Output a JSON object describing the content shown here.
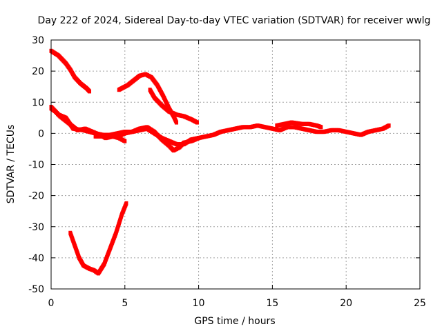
{
  "chart_data": {
    "type": "scatter",
    "title": "Day 222 of 2024, Sidereal Day-to-day VTEC variation (SDTVAR) for receiver wwlg",
    "xlabel": "GPS time / hours",
    "ylabel": "SDTVAR / TECUs",
    "xlim": [
      0,
      25
    ],
    "ylim": [
      -50,
      30
    ],
    "x_ticks": [
      0,
      5,
      10,
      15,
      20,
      25
    ],
    "y_ticks": [
      -50,
      -40,
      -30,
      -20,
      -10,
      0,
      10,
      20,
      30
    ],
    "x_tick_labels": [
      "0",
      "5",
      "10",
      "15",
      "20",
      "25"
    ],
    "y_tick_labels": [
      "-50",
      "-40",
      "-30",
      "-20",
      "-10",
      "0",
      "10",
      "20",
      "30"
    ],
    "grid": true,
    "legend": "none",
    "marker_color": "#ff0000",
    "series": [
      {
        "name": "arc-1",
        "points": [
          [
            0,
            26.5
          ],
          [
            0.5,
            25
          ],
          [
            1,
            22.5
          ],
          [
            1.3,
            20.5
          ],
          [
            1.6,
            18
          ],
          [
            2,
            16
          ],
          [
            2.4,
            14.5
          ],
          [
            2.6,
            13.5
          ]
        ]
      },
      {
        "name": "arc-2",
        "points": [
          [
            4.6,
            14
          ],
          [
            5.2,
            15.5
          ],
          [
            5.6,
            17
          ],
          [
            6,
            18.5
          ],
          [
            6.4,
            19
          ],
          [
            6.8,
            18
          ],
          [
            7.2,
            15.5
          ],
          [
            7.6,
            12
          ],
          [
            8,
            8
          ],
          [
            8.3,
            5.5
          ],
          [
            8.5,
            3.5
          ]
        ]
      },
      {
        "name": "arc-3",
        "points": [
          [
            6.7,
            14
          ],
          [
            7,
            11.5
          ],
          [
            7.5,
            9
          ],
          [
            8,
            7
          ],
          [
            8.5,
            6
          ],
          [
            9,
            5.5
          ],
          [
            9.5,
            4.5
          ],
          [
            9.9,
            3.5
          ]
        ]
      },
      {
        "name": "arc-4",
        "points": [
          [
            0,
            8
          ],
          [
            0.3,
            7
          ],
          [
            0.6,
            5.5
          ],
          [
            1,
            4
          ],
          [
            1.4,
            2.5
          ],
          [
            1.8,
            1
          ],
          [
            2.3,
            1.5
          ],
          [
            2.8,
            0.5
          ],
          [
            3.3,
            -0.5
          ],
          [
            3.7,
            -1.5
          ],
          [
            4.2,
            -1
          ],
          [
            4.6,
            -1.5
          ],
          [
            5,
            -2.5
          ]
        ]
      },
      {
        "name": "arc-5",
        "points": [
          [
            0,
            8.5
          ],
          [
            0.5,
            6
          ],
          [
            1,
            5
          ],
          [
            1.5,
            1.5
          ],
          [
            2.2,
            1
          ],
          [
            3,
            0
          ],
          [
            3.5,
            -0.5
          ],
          [
            4,
            -0.5
          ],
          [
            4.5,
            0
          ],
          [
            5,
            0.5
          ],
          [
            5.5,
            0.5
          ],
          [
            6,
            1
          ],
          [
            6.5,
            1.5
          ],
          [
            7,
            0
          ],
          [
            7.5,
            -1.5
          ],
          [
            8,
            -2.5
          ],
          [
            8.5,
            -3.5
          ],
          [
            9,
            -3.5
          ],
          [
            9.5,
            -2
          ],
          [
            10,
            -1.5
          ],
          [
            10.5,
            -1
          ],
          [
            11,
            -0.5
          ],
          [
            11.5,
            0.5
          ],
          [
            12,
            1
          ],
          [
            12.5,
            1.5
          ],
          [
            13,
            2
          ],
          [
            13.5,
            2
          ],
          [
            14,
            2.5
          ],
          [
            14.5,
            2
          ],
          [
            15,
            1.5
          ],
          [
            15.5,
            1
          ],
          [
            16,
            2
          ],
          [
            16.5,
            2
          ],
          [
            17,
            1.5
          ],
          [
            17.5,
            1
          ],
          [
            18,
            0.5
          ],
          [
            18.5,
            0.5
          ],
          [
            19,
            1
          ],
          [
            19.5,
            1
          ],
          [
            20,
            0.5
          ],
          [
            20.5,
            0
          ],
          [
            21,
            -0.5
          ],
          [
            21.5,
            0.5
          ],
          [
            22,
            1
          ],
          [
            22.5,
            1.5
          ],
          [
            22.9,
            2.5
          ]
        ]
      },
      {
        "name": "arc-6",
        "points": [
          [
            3,
            -1
          ],
          [
            4,
            -1
          ],
          [
            4.5,
            -1
          ],
          [
            5,
            0
          ],
          [
            5.5,
            0.5
          ],
          [
            6,
            1.5
          ],
          [
            6.5,
            2
          ],
          [
            7,
            0.5
          ],
          [
            7.5,
            -2
          ],
          [
            8,
            -4
          ],
          [
            8.3,
            -5.5
          ],
          [
            8.7,
            -4.5
          ],
          [
            9,
            -3
          ],
          [
            9.5,
            -2.5
          ],
          [
            10,
            -1.5
          ]
        ]
      },
      {
        "name": "arc-7",
        "points": [
          [
            15.3,
            2.5
          ],
          [
            15.8,
            3
          ],
          [
            16.3,
            3.5
          ],
          [
            17,
            3
          ],
          [
            17.5,
            3
          ],
          [
            18,
            2.5
          ],
          [
            18.3,
            2
          ]
        ]
      },
      {
        "name": "arc-8",
        "points": [
          [
            1.3,
            -32
          ],
          [
            1.6,
            -36
          ],
          [
            1.9,
            -40
          ],
          [
            2.2,
            -42.5
          ],
          [
            2.6,
            -43.5
          ],
          [
            2.9,
            -44
          ],
          [
            3.2,
            -45
          ],
          [
            3.6,
            -42
          ],
          [
            4,
            -37
          ],
          [
            4.4,
            -32
          ],
          [
            4.8,
            -26
          ],
          [
            5.1,
            -22.5
          ]
        ]
      }
    ]
  }
}
